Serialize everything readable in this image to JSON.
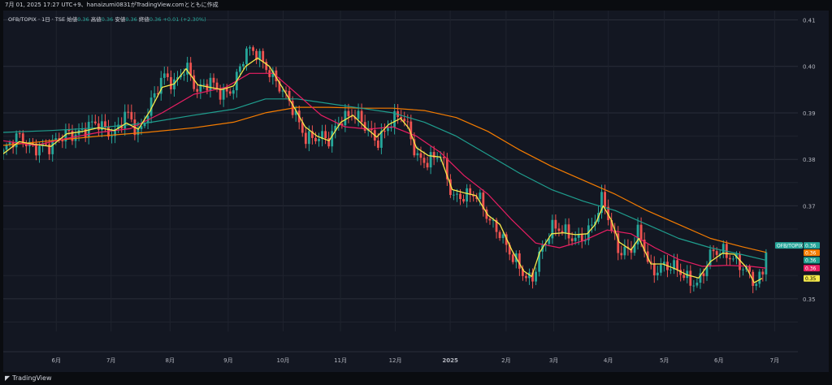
{
  "header": {
    "timestamp": "7月 01, 2025 17:27 UTC+9、hanaizumi0831がTradingView.comとともに作成"
  },
  "legend": {
    "symbol": "OFB/TOPIX · 1日 · TSE",
    "open_label": "始値",
    "open": "0.36",
    "high_label": "高値",
    "high": "0.36",
    "low_label": "安値",
    "low": "0.36",
    "close_label": "終値",
    "close": "0.36",
    "change": "+0.01 (+2.30%)"
  },
  "colors": {
    "background": "#131722",
    "up": "#26a69a",
    "down": "#ef5350",
    "ma_short": "#f5e94a",
    "ma_mid": "#e91e63",
    "ma_long": "#1f9e8e",
    "ma_longest": "#f57c00"
  },
  "footer": {
    "brand": "TradingView",
    "brand_icon": "tradingview-logo-icon"
  },
  "chart_data": {
    "type": "candlestick",
    "y_axis": {
      "ticks": [
        0.41,
        0.4,
        0.39,
        0.38,
        0.37,
        0.35
      ],
      "range": [
        0.343,
        0.412
      ]
    },
    "x_axis": {
      "ticks": [
        {
          "label": "6月",
          "t": 0.0667
        },
        {
          "label": "7月",
          "t": 0.1357
        },
        {
          "label": "8月",
          "t": 0.2099
        },
        {
          "label": "9月",
          "t": 0.2831
        },
        {
          "label": "10月",
          "t": 0.3522
        },
        {
          "label": "11月",
          "t": 0.4244
        },
        {
          "label": "12月",
          "t": 0.4934
        },
        {
          "label": "2025",
          "t": 0.5625
        },
        {
          "label": "2月",
          "t": 0.6328
        },
        {
          "label": "3月",
          "t": 0.6928
        },
        {
          "label": "4月",
          "t": 0.7614
        },
        {
          "label": "5月",
          "t": 0.832
        },
        {
          "label": "6月",
          "t": 0.9006
        },
        {
          "label": "7月",
          "t": 0.9707
        }
      ]
    },
    "price_labels": [
      {
        "text": "OFB/TOPIX",
        "value": "0.36",
        "color": "#26a69a",
        "y": 0.3615
      },
      {
        "text": "",
        "value": "0.36",
        "color": "#f57c00",
        "y": 0.36
      },
      {
        "text": "",
        "value": "0.36",
        "color": "#1f9e8e",
        "y": 0.3583
      },
      {
        "text": "",
        "value": "0.36",
        "color": "#e91e63",
        "y": 0.3566
      },
      {
        "text": "",
        "value": "0.35",
        "color": "#f5e94a",
        "y": 0.3544
      }
    ],
    "price_series": [
      [
        0.0,
        0.3815
      ],
      [
        0.02,
        0.3845
      ],
      [
        0.04,
        0.3832
      ],
      [
        0.06,
        0.382
      ],
      [
        0.08,
        0.3862
      ],
      [
        0.1,
        0.3858
      ],
      [
        0.12,
        0.3875
      ],
      [
        0.14,
        0.386
      ],
      [
        0.155,
        0.3895
      ],
      [
        0.17,
        0.385
      ],
      [
        0.185,
        0.3925
      ],
      [
        0.2,
        0.3975
      ],
      [
        0.215,
        0.3955
      ],
      [
        0.23,
        0.401
      ],
      [
        0.245,
        0.3945
      ],
      [
        0.26,
        0.396
      ],
      [
        0.275,
        0.3945
      ],
      [
        0.29,
        0.396
      ],
      [
        0.305,
        0.4025
      ],
      [
        0.32,
        0.403
      ],
      [
        0.335,
        0.3995
      ],
      [
        0.35,
        0.3945
      ],
      [
        0.365,
        0.3905
      ],
      [
        0.38,
        0.3855
      ],
      [
        0.395,
        0.3845
      ],
      [
        0.41,
        0.3835
      ],
      [
        0.425,
        0.3895
      ],
      [
        0.44,
        0.39
      ],
      [
        0.455,
        0.3865
      ],
      [
        0.47,
        0.384
      ],
      [
        0.485,
        0.388
      ],
      [
        0.5,
        0.389
      ],
      [
        0.51,
        0.386
      ],
      [
        0.52,
        0.381
      ],
      [
        0.535,
        0.38
      ],
      [
        0.55,
        0.3805
      ],
      [
        0.565,
        0.372
      ],
      [
        0.58,
        0.373
      ],
      [
        0.595,
        0.372
      ],
      [
        0.61,
        0.367
      ],
      [
        0.625,
        0.365
      ],
      [
        0.64,
        0.359
      ],
      [
        0.655,
        0.3545
      ],
      [
        0.665,
        0.354
      ],
      [
        0.675,
        0.3605
      ],
      [
        0.69,
        0.365
      ],
      [
        0.705,
        0.364
      ],
      [
        0.72,
        0.3635
      ],
      [
        0.735,
        0.364
      ],
      [
        0.745,
        0.3665
      ],
      [
        0.755,
        0.3715
      ],
      [
        0.765,
        0.3655
      ],
      [
        0.775,
        0.361
      ],
      [
        0.79,
        0.36
      ],
      [
        0.8,
        0.364
      ],
      [
        0.815,
        0.3565
      ],
      [
        0.83,
        0.3575
      ],
      [
        0.845,
        0.356
      ],
      [
        0.86,
        0.3545
      ],
      [
        0.875,
        0.354
      ],
      [
        0.89,
        0.359
      ],
      [
        0.905,
        0.36
      ],
      [
        0.92,
        0.3595
      ],
      [
        0.935,
        0.356
      ],
      [
        0.945,
        0.3525
      ],
      [
        0.955,
        0.3545
      ],
      [
        0.96,
        0.361
      ]
    ],
    "ma_short": [
      [
        0.0,
        0.3812
      ],
      [
        0.02,
        0.3838
      ],
      [
        0.04,
        0.3832
      ],
      [
        0.06,
        0.3828
      ],
      [
        0.08,
        0.3855
      ],
      [
        0.1,
        0.386
      ],
      [
        0.12,
        0.3868
      ],
      [
        0.14,
        0.3862
      ],
      [
        0.155,
        0.3878
      ],
      [
        0.17,
        0.3865
      ],
      [
        0.185,
        0.3905
      ],
      [
        0.2,
        0.3955
      ],
      [
        0.215,
        0.3962
      ],
      [
        0.23,
        0.3995
      ],
      [
        0.245,
        0.396
      ],
      [
        0.26,
        0.3955
      ],
      [
        0.275,
        0.395
      ],
      [
        0.29,
        0.3958
      ],
      [
        0.305,
        0.4
      ],
      [
        0.32,
        0.4018
      ],
      [
        0.335,
        0.4
      ],
      [
        0.35,
        0.3958
      ],
      [
        0.365,
        0.3915
      ],
      [
        0.38,
        0.387
      ],
      [
        0.395,
        0.385
      ],
      [
        0.41,
        0.384
      ],
      [
        0.425,
        0.388
      ],
      [
        0.44,
        0.3895
      ],
      [
        0.455,
        0.387
      ],
      [
        0.47,
        0.3848
      ],
      [
        0.485,
        0.3875
      ],
      [
        0.5,
        0.3888
      ],
      [
        0.51,
        0.3868
      ],
      [
        0.52,
        0.3825
      ],
      [
        0.535,
        0.3808
      ],
      [
        0.55,
        0.3805
      ],
      [
        0.565,
        0.3735
      ],
      [
        0.58,
        0.3728
      ],
      [
        0.595,
        0.3722
      ],
      [
        0.61,
        0.368
      ],
      [
        0.625,
        0.366
      ],
      [
        0.64,
        0.3605
      ],
      [
        0.655,
        0.356
      ],
      [
        0.665,
        0.3548
      ],
      [
        0.675,
        0.36
      ],
      [
        0.69,
        0.364
      ],
      [
        0.705,
        0.3642
      ],
      [
        0.72,
        0.3638
      ],
      [
        0.735,
        0.364
      ],
      [
        0.745,
        0.366
      ],
      [
        0.755,
        0.37
      ],
      [
        0.765,
        0.367
      ],
      [
        0.775,
        0.3622
      ],
      [
        0.79,
        0.3605
      ],
      [
        0.8,
        0.363
      ],
      [
        0.815,
        0.3575
      ],
      [
        0.83,
        0.3575
      ],
      [
        0.845,
        0.3565
      ],
      [
        0.86,
        0.3552
      ],
      [
        0.875,
        0.3545
      ],
      [
        0.89,
        0.358
      ],
      [
        0.905,
        0.3598
      ],
      [
        0.92,
        0.3596
      ],
      [
        0.935,
        0.3568
      ],
      [
        0.945,
        0.3535
      ],
      [
        0.955,
        0.3544
      ]
    ],
    "ma_mid": [
      [
        0.0,
        0.384
      ],
      [
        0.04,
        0.383
      ],
      [
        0.08,
        0.3845
      ],
      [
        0.12,
        0.3858
      ],
      [
        0.16,
        0.3866
      ],
      [
        0.2,
        0.39
      ],
      [
        0.24,
        0.394
      ],
      [
        0.28,
        0.3955
      ],
      [
        0.31,
        0.3985
      ],
      [
        0.34,
        0.3985
      ],
      [
        0.37,
        0.394
      ],
      [
        0.4,
        0.3895
      ],
      [
        0.43,
        0.387
      ],
      [
        0.46,
        0.3865
      ],
      [
        0.49,
        0.387
      ],
      [
        0.52,
        0.385
      ],
      [
        0.55,
        0.3815
      ],
      [
        0.58,
        0.3765
      ],
      [
        0.61,
        0.3725
      ],
      [
        0.64,
        0.367
      ],
      [
        0.67,
        0.362
      ],
      [
        0.7,
        0.361
      ],
      [
        0.73,
        0.3625
      ],
      [
        0.76,
        0.3648
      ],
      [
        0.79,
        0.364
      ],
      [
        0.82,
        0.361
      ],
      [
        0.85,
        0.3585
      ],
      [
        0.88,
        0.357
      ],
      [
        0.91,
        0.3572
      ],
      [
        0.94,
        0.357
      ],
      [
        0.96,
        0.3566
      ]
    ],
    "ma_long": [
      [
        0.0,
        0.3858
      ],
      [
        0.06,
        0.3862
      ],
      [
        0.12,
        0.3868
      ],
      [
        0.18,
        0.3878
      ],
      [
        0.24,
        0.3895
      ],
      [
        0.29,
        0.3908
      ],
      [
        0.33,
        0.393
      ],
      [
        0.37,
        0.393
      ],
      [
        0.41,
        0.392
      ],
      [
        0.45,
        0.391
      ],
      [
        0.49,
        0.39
      ],
      [
        0.53,
        0.388
      ],
      [
        0.57,
        0.385
      ],
      [
        0.61,
        0.381
      ],
      [
        0.65,
        0.377
      ],
      [
        0.69,
        0.3735
      ],
      [
        0.73,
        0.371
      ],
      [
        0.77,
        0.369
      ],
      [
        0.81,
        0.366
      ],
      [
        0.85,
        0.363
      ],
      [
        0.89,
        0.361
      ],
      [
        0.93,
        0.3595
      ],
      [
        0.96,
        0.3583
      ]
    ],
    "ma_longest": [
      [
        0.0,
        0.383
      ],
      [
        0.06,
        0.384
      ],
      [
        0.12,
        0.385
      ],
      [
        0.18,
        0.3858
      ],
      [
        0.24,
        0.3868
      ],
      [
        0.29,
        0.388
      ],
      [
        0.33,
        0.39
      ],
      [
        0.37,
        0.3912
      ],
      [
        0.41,
        0.3912
      ],
      [
        0.45,
        0.391
      ],
      [
        0.49,
        0.391
      ],
      [
        0.53,
        0.3905
      ],
      [
        0.57,
        0.389
      ],
      [
        0.61,
        0.386
      ],
      [
        0.65,
        0.382
      ],
      [
        0.69,
        0.3785
      ],
      [
        0.73,
        0.3755
      ],
      [
        0.77,
        0.3725
      ],
      [
        0.81,
        0.369
      ],
      [
        0.85,
        0.366
      ],
      [
        0.89,
        0.363
      ],
      [
        0.93,
        0.3612
      ],
      [
        0.96,
        0.36
      ]
    ]
  }
}
